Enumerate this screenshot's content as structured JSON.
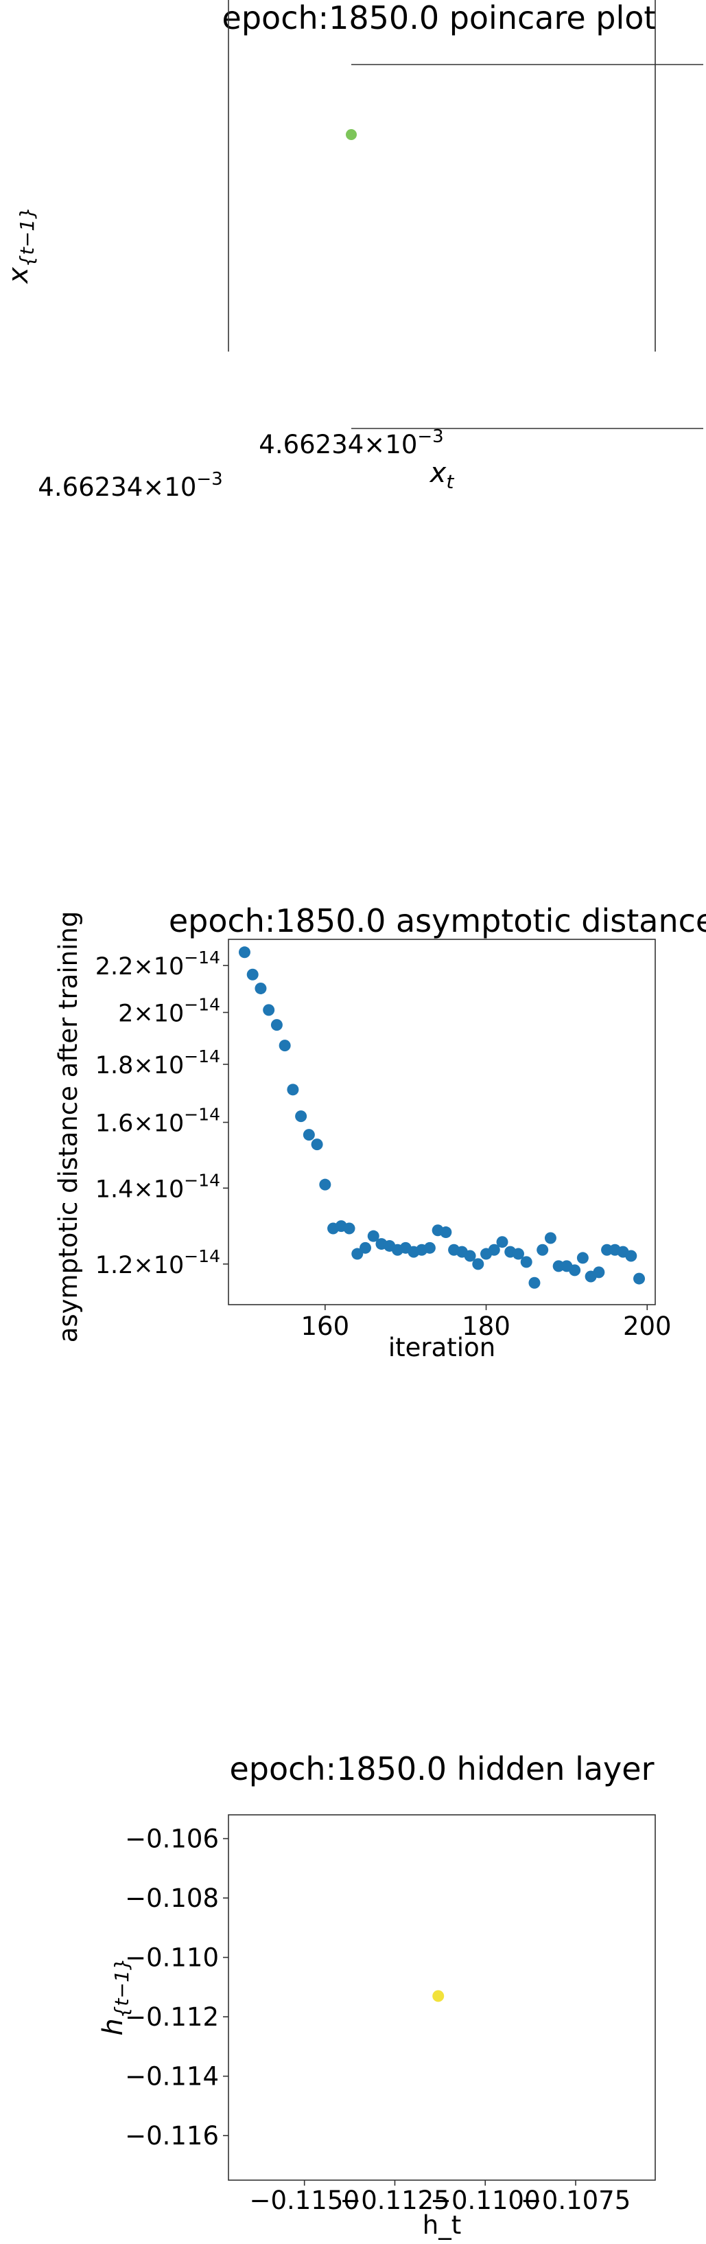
{
  "colors": {
    "poincare_point": "#7dc55a",
    "scatter_point": "#1f77b4",
    "hidden_point": "#f2e23b",
    "axis": "#333333",
    "text": "#000000"
  },
  "chart_data": [
    {
      "type": "scatter",
      "title": "epoch:1850.0 poincare plot",
      "xlabel": "x_t",
      "ylabel": "x_{t-1}",
      "tick_label_x": "4.66234×10^-3",
      "tick_label_y": "4.66234×10^-3",
      "grid": false,
      "points": [
        {
          "x": 0.00466234,
          "y": 0.00466234
        }
      ]
    },
    {
      "type": "scatter",
      "title": "epoch:1850.0 asymptotic distance",
      "xlabel": "iteration",
      "ylabel": "asymptotic distance after training",
      "y_scale": "log",
      "xlim": [
        148,
        201
      ],
      "ylim": [
        1.105e-14,
        2.32e-14
      ],
      "x_ticks": [
        160,
        180,
        200
      ],
      "y_ticks": [
        {
          "value": 1.2e-14,
          "mantissa": "1.2",
          "base": "10",
          "exp": "−14"
        },
        {
          "value": 1.4e-14,
          "mantissa": "1.4",
          "base": "10",
          "exp": "−14"
        },
        {
          "value": 1.6e-14,
          "mantissa": "1.6",
          "base": "10",
          "exp": "−14"
        },
        {
          "value": 1.8e-14,
          "mantissa": "1.8",
          "base": "10",
          "exp": "−14"
        },
        {
          "value": 2e-14,
          "mantissa": "2",
          "base": "10",
          "exp": "−14"
        },
        {
          "value": 2.2e-14,
          "mantissa": "2.2",
          "base": "10",
          "exp": "−14"
        }
      ],
      "grid": false,
      "x": [
        150,
        151,
        152,
        153,
        154,
        155,
        156,
        157,
        158,
        159,
        160,
        161,
        162,
        163,
        164,
        165,
        166,
        167,
        168,
        169,
        170,
        171,
        172,
        173,
        174,
        175,
        176,
        177,
        178,
        179,
        180,
        181,
        182,
        183,
        184,
        185,
        186,
        187,
        188,
        189,
        190,
        191,
        192,
        193,
        194,
        195,
        196,
        197,
        198,
        199
      ],
      "y": [
        2.26e-14,
        2.16e-14,
        2.1e-14,
        2.01e-14,
        1.95e-14,
        1.87e-14,
        1.71e-14,
        1.62e-14,
        1.56e-14,
        1.53e-14,
        1.41e-14,
        1.29e-14,
        1.296e-14,
        1.29e-14,
        1.225e-14,
        1.24e-14,
        1.27e-14,
        1.25e-14,
        1.245e-14,
        1.235e-14,
        1.24e-14,
        1.23e-14,
        1.235e-14,
        1.24e-14,
        1.285e-14,
        1.28e-14,
        1.235e-14,
        1.23e-14,
        1.22e-14,
        1.2e-14,
        1.225e-14,
        1.235e-14,
        1.255e-14,
        1.23e-14,
        1.225e-14,
        1.205e-14,
        1.155e-14,
        1.235e-14,
        1.265e-14,
        1.195e-14,
        1.195e-14,
        1.185e-14,
        1.215e-14,
        1.17e-14,
        1.18e-14,
        1.235e-14,
        1.235e-14,
        1.23e-14,
        1.22e-14,
        1.165e-14
      ]
    },
    {
      "type": "scatter",
      "title": "epoch:1850.0 hidden layer",
      "xlabel": "h_t",
      "ylabel": "h_{t-1}",
      "xlim": [
        -0.1171,
        -0.1053
      ],
      "ylim": [
        -0.1175,
        -0.1052
      ],
      "x_ticks": [
        {
          "value": -0.115,
          "label": "−0.1150"
        },
        {
          "value": -0.1125,
          "label": "−0.1125"
        },
        {
          "value": -0.11,
          "label": "−0.1100"
        },
        {
          "value": -0.1075,
          "label": "−0.1075"
        }
      ],
      "y_ticks": [
        {
          "value": -0.106,
          "label": "−0.106"
        },
        {
          "value": -0.108,
          "label": "−0.108"
        },
        {
          "value": -0.11,
          "label": "−0.110"
        },
        {
          "value": -0.112,
          "label": "−0.112"
        },
        {
          "value": -0.114,
          "label": "−0.114"
        },
        {
          "value": -0.116,
          "label": "−0.116"
        }
      ],
      "grid": false,
      "points": [
        {
          "x": -0.1113,
          "y": -0.1113
        }
      ]
    }
  ]
}
